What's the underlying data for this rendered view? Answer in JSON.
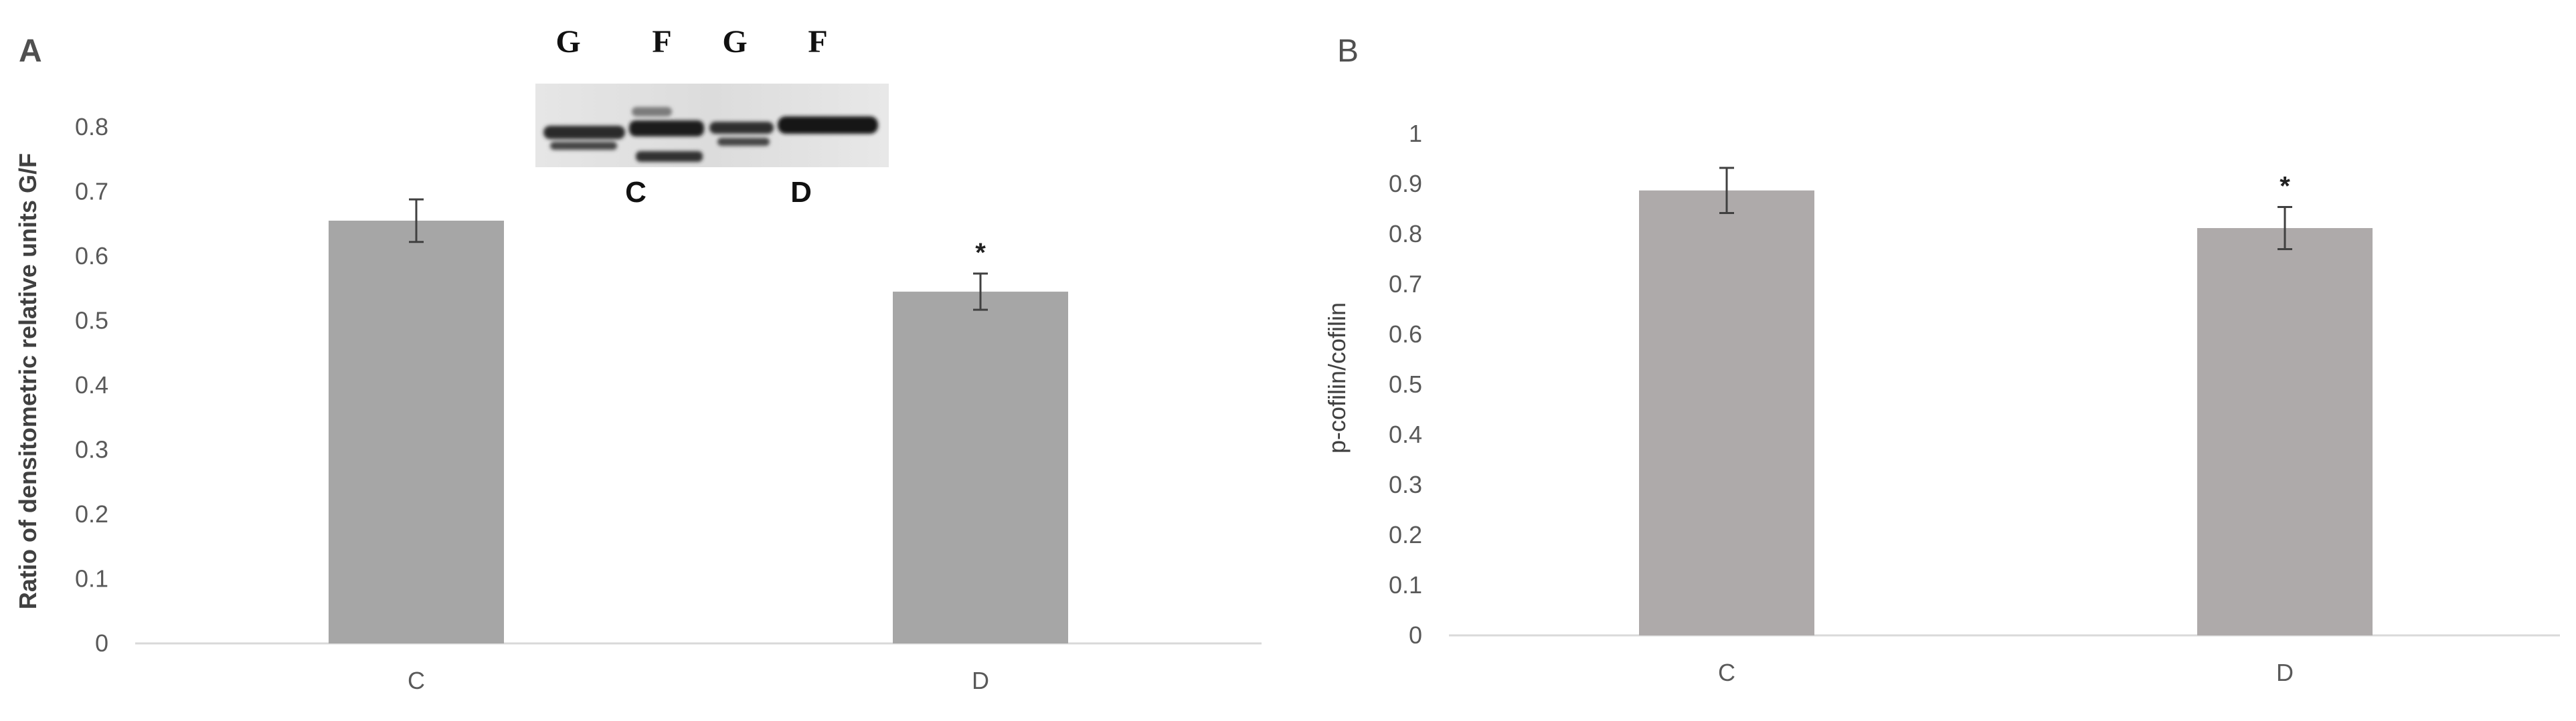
{
  "chart_data": [
    {
      "panel": "A",
      "type": "bar",
      "categories": [
        "C",
        "D"
      ],
      "values": [
        0.655,
        0.545
      ],
      "error": [
        0.033,
        0.028
      ],
      "annotations": [
        "",
        "*"
      ],
      "ylabel": "Ratio of densitometric relative units G/F",
      "ylim": [
        0,
        0.8
      ],
      "yticks": [
        "0",
        "0.1",
        "0.2",
        "0.3",
        "0.4",
        "0.5",
        "0.6",
        "0.7",
        "0.8"
      ],
      "bar_color": "#a6a6a6",
      "grid": false,
      "inset": {
        "top_labels": [
          "G",
          "F",
          "G",
          "F"
        ],
        "bottom_labels": [
          "C",
          "D"
        ]
      }
    },
    {
      "panel": "B",
      "type": "bar",
      "categories": [
        "C",
        "D"
      ],
      "values": [
        0.887,
        0.812
      ],
      "error": [
        0.045,
        0.042
      ],
      "annotations": [
        "",
        "*"
      ],
      "ylabel": "p-cofilin/cofilin",
      "ylim": [
        0,
        1
      ],
      "yticks": [
        "0",
        "0.1",
        "0.2",
        "0.3",
        "0.4",
        "0.5",
        "0.6",
        "0.7",
        "0.8",
        "0.9",
        "1"
      ],
      "bar_color": "#aeaaaa",
      "grid": false
    }
  ]
}
